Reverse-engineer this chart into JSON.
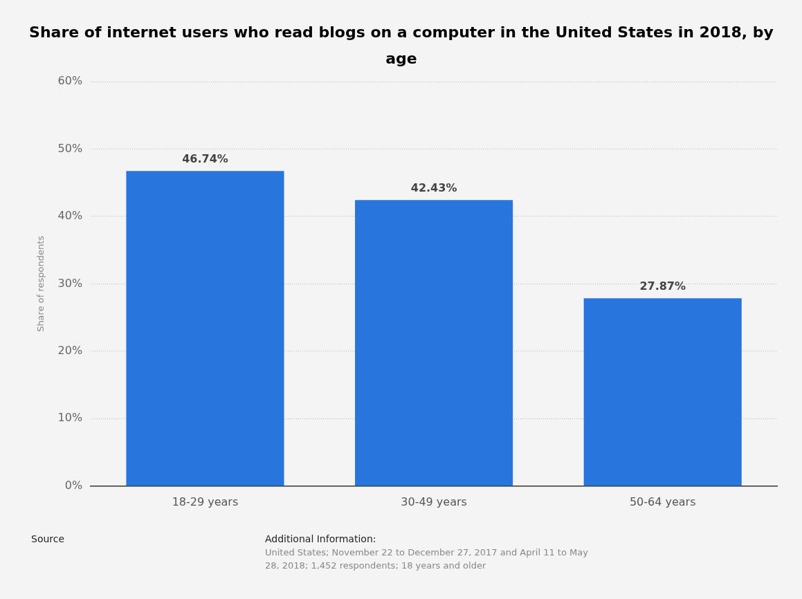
{
  "chart_data": {
    "type": "bar",
    "title": "Share of internet users who read blogs on a computer in the United States in 2018, by age",
    "ylabel": "Share of respondents",
    "categories": [
      "18-29 years",
      "30-49 years",
      "50-64 years"
    ],
    "values": [
      46.74,
      42.43,
      27.87
    ],
    "value_labels": [
      "46.74%",
      "42.43%",
      "27.87%"
    ],
    "color": "#2876dd",
    "ylim": [
      0,
      60
    ],
    "yticks": [
      {
        "value": 0,
        "label": "0%"
      },
      {
        "value": 10,
        "label": "10%"
      },
      {
        "value": 20,
        "label": "20%"
      },
      {
        "value": 30,
        "label": "30%"
      },
      {
        "value": 40,
        "label": "40%"
      },
      {
        "value": 50,
        "label": "50%"
      },
      {
        "value": 60,
        "label": "60%"
      }
    ],
    "grid": "y",
    "legend": false,
    "annotations": [
      "Source",
      "Additional Information:",
      "United States; November 22 to December 27, 2017 and April 11 to May 28, 2018; 1,452 respondents; 18 years and older"
    ]
  }
}
